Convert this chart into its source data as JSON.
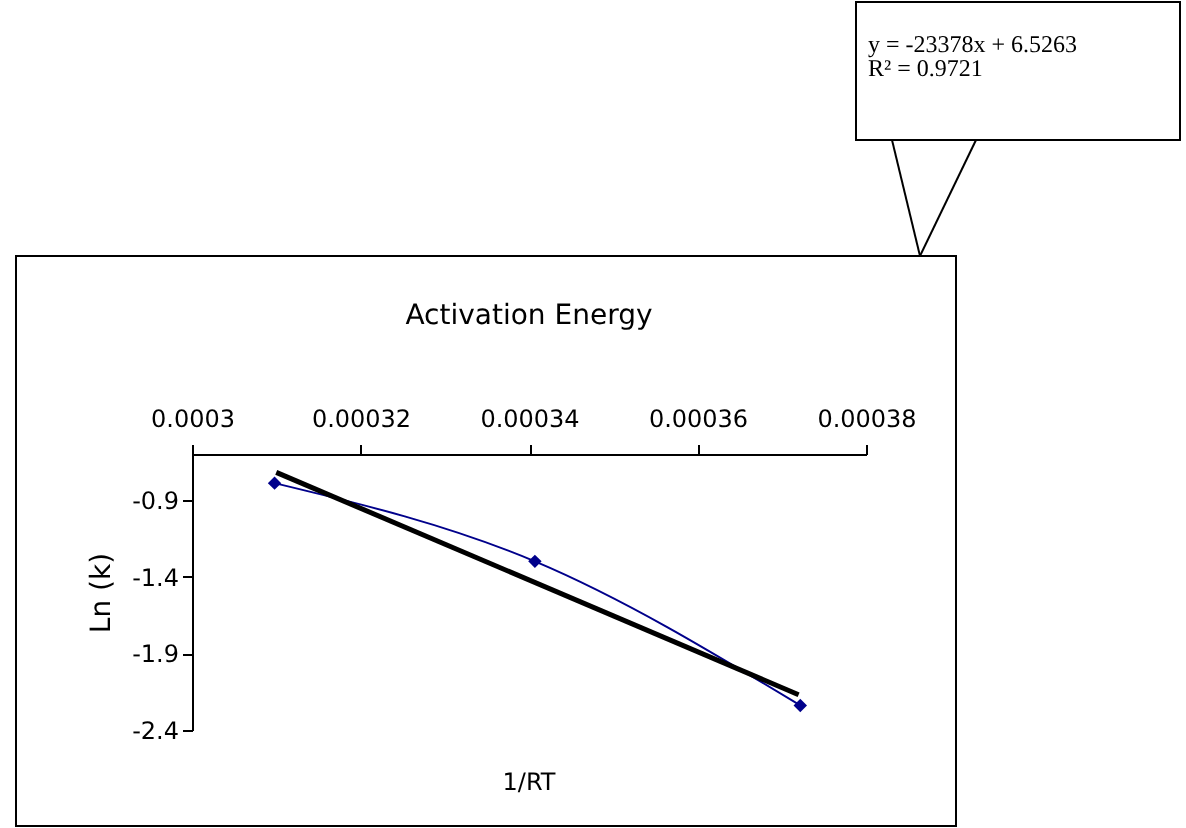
{
  "chart_data": {
    "type": "line",
    "title": "Activation Energy",
    "xlabel": "1/RT",
    "ylabel": "Ln (k)",
    "annotations": [
      "y = -23378x + 6.5263",
      "R² = 0.9721"
    ],
    "x": [
      0.0003098,
      0.0003407,
      0.0003722
    ],
    "series": [
      {
        "color": "#00008b",
        "values": [
          -0.79,
          -1.3,
          -2.24
        ],
        "marker": "diamond",
        "line_style": "solid"
      },
      {
        "color": "#000000",
        "x": [
          0.00031,
          0.000372
        ],
        "values": [
          -0.72,
          -2.17
        ],
        "marker": "none",
        "line_style": "solid"
      }
    ],
    "xlim": [
      0.0003,
      0.00038
    ],
    "xticks": [
      0.0003,
      0.00032,
      0.00034,
      0.00036,
      0.00038
    ],
    "ylim": [
      -2.4,
      -0.6
    ],
    "yticks": [
      -0.9,
      -1.4,
      -1.9,
      -2.4
    ],
    "grid": false
  }
}
